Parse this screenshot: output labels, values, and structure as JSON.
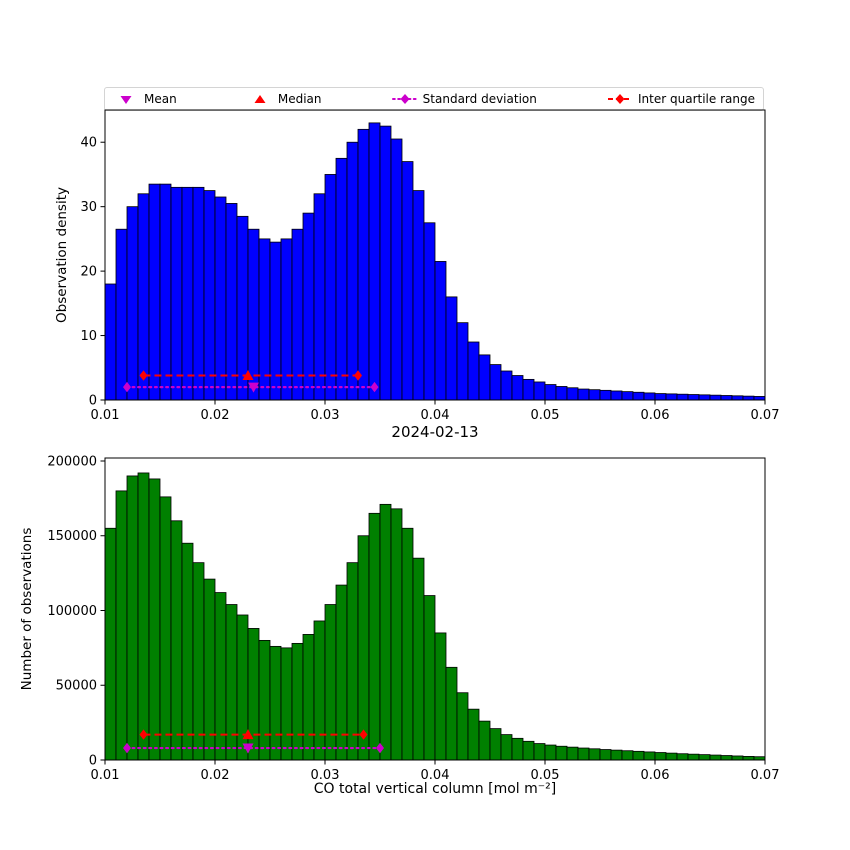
{
  "legend": {
    "items": [
      {
        "label": "Mean",
        "marker": "triangle-down",
        "color": "#cc00cc"
      },
      {
        "label": "Median",
        "marker": "triangle-up",
        "color": "#ff0000"
      },
      {
        "label": "Standard deviation",
        "marker": "diamond-dotted-line",
        "color": "#cc00cc"
      },
      {
        "label": "Inter quartile range",
        "marker": "diamond-dashed-line",
        "color": "#ff0000"
      }
    ]
  },
  "chart_data": [
    {
      "type": "bar",
      "title": "",
      "xlabel": "",
      "ylabel": "Observation density",
      "xlim": [
        0.01,
        0.07
      ],
      "ylim": [
        0,
        45
      ],
      "bin_start": 0.01,
      "bin_width": 0.001,
      "bar_color": "#0000ff",
      "edge_color": "#000000",
      "grid": false,
      "xticks": [
        0.01,
        0.02,
        0.03,
        0.04,
        0.05,
        0.06,
        0.07
      ],
      "xtick_labels": [
        "0.01",
        "0.02",
        "0.03",
        "0.04",
        "0.05",
        "0.06",
        "0.07"
      ],
      "yticks": [
        0,
        10,
        20,
        30,
        40
      ],
      "ytick_labels": [
        "0",
        "10",
        "20",
        "30",
        "40"
      ],
      "values": [
        18,
        26.5,
        30,
        32,
        33.5,
        33.5,
        33,
        33,
        33,
        32.5,
        31.5,
        30.5,
        28.5,
        26.5,
        25,
        24.5,
        25,
        26.5,
        29,
        32,
        35,
        37.5,
        40,
        42,
        43,
        42.5,
        40.5,
        37,
        32.5,
        27.5,
        21.5,
        16,
        12,
        9,
        7,
        5.5,
        4.5,
        3.8,
        3.2,
        2.8,
        2.4,
        2.1,
        1.9,
        1.7,
        1.6,
        1.5,
        1.4,
        1.3,
        1.2,
        1.1,
        1.0,
        0.95,
        0.9,
        0.85,
        0.8,
        0.75,
        0.7,
        0.65,
        0.6,
        0.55
      ],
      "stats": {
        "mean": 0.0235,
        "median": 0.023,
        "std_range": [
          0.012,
          0.0345
        ],
        "iqr_range": [
          0.0135,
          0.033
        ],
        "std_y": 2.0,
        "iqr_y": 3.8
      }
    },
    {
      "type": "bar",
      "title": "2024-02-13",
      "xlabel": "CO total vertical column [mol m⁻²]",
      "ylabel": "Number of observations",
      "xlim": [
        0.01,
        0.07
      ],
      "ylim": [
        0,
        202000
      ],
      "bin_start": 0.01,
      "bin_width": 0.001,
      "bar_color": "#008000",
      "edge_color": "#000000",
      "grid": false,
      "xticks": [
        0.01,
        0.02,
        0.03,
        0.04,
        0.05,
        0.06,
        0.07
      ],
      "xtick_labels": [
        "0.01",
        "0.02",
        "0.03",
        "0.04",
        "0.05",
        "0.06",
        "0.07"
      ],
      "yticks": [
        0,
        50000,
        100000,
        150000,
        200000
      ],
      "ytick_labels": [
        "0",
        "50000",
        "100000",
        "150000",
        "200000"
      ],
      "values": [
        155000,
        180000,
        190000,
        192000,
        188000,
        176000,
        160000,
        145000,
        132000,
        121000,
        112000,
        104000,
        97000,
        88000,
        80000,
        76000,
        75000,
        78000,
        84000,
        93000,
        104000,
        117000,
        132000,
        150000,
        165000,
        171000,
        168000,
        155000,
        135000,
        110000,
        85000,
        62000,
        45000,
        34000,
        26000,
        21000,
        17000,
        14500,
        12500,
        11000,
        10000,
        9200,
        8600,
        8000,
        7500,
        7000,
        6600,
        6200,
        5800,
        5400,
        5000,
        4600,
        4200,
        3900,
        3600,
        3300,
        3000,
        2700,
        2400,
        2200
      ],
      "stats": {
        "mean": 0.023,
        "median": 0.023,
        "std_range": [
          0.012,
          0.035
        ],
        "iqr_range": [
          0.0135,
          0.0335
        ],
        "std_y": 8000,
        "iqr_y": 17000
      }
    }
  ]
}
